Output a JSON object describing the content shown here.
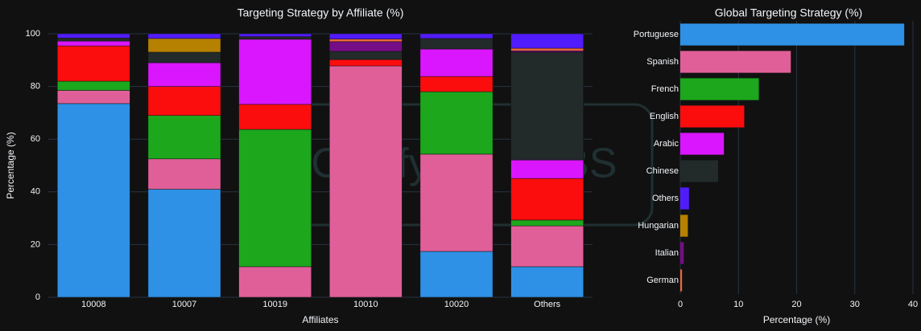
{
  "watermark": {
    "left": "Cleafy",
    "right": "LABS"
  },
  "chart_data": [
    {
      "type": "stacked_bar",
      "title": "Targeting Strategy by Affiliate (%)",
      "x_label": "Affiliates",
      "y_label": "Percentage (%)",
      "categories": [
        "10008",
        "10007",
        "10019",
        "10010",
        "10020",
        "Others"
      ],
      "series": [
        {
          "color": "#2e91e5",
          "values": [
            73.5,
            41,
            0,
            0,
            17.4,
            11.6
          ]
        },
        {
          "color": "#e15f99",
          "values": [
            5,
            11.5,
            11.6,
            87.8,
            36.9,
            15.5
          ]
        },
        {
          "color": "#1ca71c",
          "values": [
            3.5,
            16.5,
            52.1,
            0,
            23.7,
            2.2
          ]
        },
        {
          "color": "#fb0d0d",
          "values": [
            13.4,
            11,
            9.5,
            2.4,
            5.8,
            15.8
          ]
        },
        {
          "color": "#da16ff",
          "values": [
            1.8,
            9,
            24.7,
            0,
            10.4,
            7
          ]
        },
        {
          "color": "#222a2a",
          "values": [
            1.2,
            4,
            1,
            3.1,
            4,
            40.9
          ]
        },
        {
          "color": "#b68100",
          "values": [
            0,
            5.2,
            0,
            0,
            0,
            0
          ]
        },
        {
          "color": "#750d86",
          "values": [
            0,
            0,
            0,
            3.7,
            0,
            0.5
          ]
        },
        {
          "color": "#eb663b",
          "values": [
            0,
            0,
            0,
            1,
            0,
            1
          ]
        },
        {
          "color": "#511cfb",
          "values": [
            1.6,
            1.8,
            1.1,
            2,
            1.8,
            5.5
          ]
        }
      ],
      "ylim": [
        0,
        100
      ],
      "yticks": [
        0,
        20,
        40,
        60,
        80,
        100
      ],
      "grid": true
    },
    {
      "type": "hbar",
      "title": "Global Targeting Strategy (%)",
      "x_label": "Percentage (%)",
      "categories": [
        "Portuguese",
        "Spanish",
        "French",
        "English",
        "Arabic",
        "Chinese",
        "Others",
        "Hungarian",
        "Italian",
        "German"
      ],
      "values": [
        38.5,
        19,
        13.5,
        11,
        7.5,
        6.5,
        1.5,
        1.3,
        0.6,
        0.3
      ],
      "colors": [
        "#2e91e5",
        "#e15f99",
        "#1ca71c",
        "#fb0d0d",
        "#da16ff",
        "#222a2a",
        "#511cfb",
        "#b68100",
        "#750d86",
        "#eb663b"
      ],
      "xlim": [
        0,
        40
      ],
      "xticks": [
        0,
        10,
        20,
        30,
        40
      ],
      "grid": true
    }
  ]
}
